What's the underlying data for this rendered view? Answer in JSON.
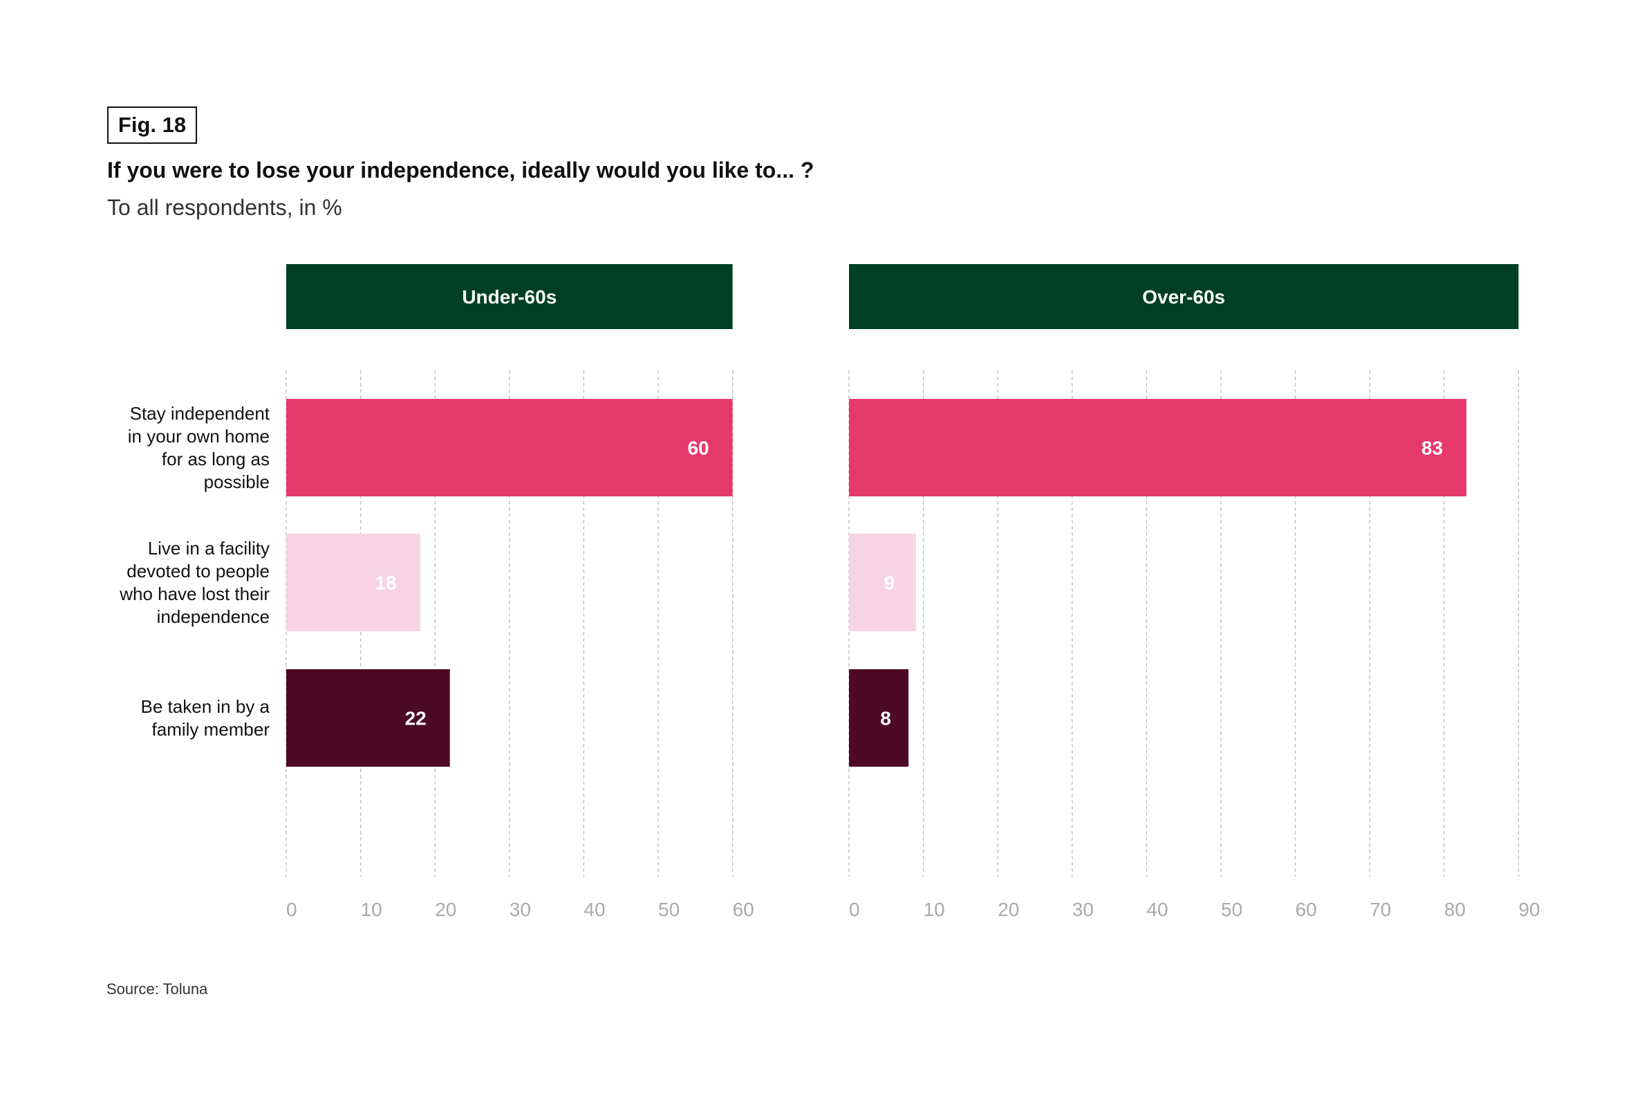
{
  "figure_label": "Fig. 18",
  "title": "If you were to lose your independence, ideally would you like to... ?",
  "subtitle": "To all respondents, in %",
  "source": "Source: Toluna",
  "colors": {
    "header_bg": "#003F25",
    "header_text": "#FFFFFF",
    "gridline": "#BBBBBB",
    "tick_text": "#AAAAAA",
    "value_text": "#FFFFFF",
    "category_colors": [
      "#E6396B",
      "#F7D3E4",
      "#4D0A24"
    ]
  },
  "chart_data": {
    "type": "bar",
    "orientation": "horizontal",
    "title": "If you were to lose your independence, ideally would you like to... ?",
    "subtitle": "To all respondents, in %",
    "categories": [
      "Stay independent in your own home for as long as possible",
      "Live in a facility devoted to people who have lost their independence",
      "Be taken in by a family member"
    ],
    "category_label_lines": [
      [
        "Stay independent",
        "in your own home",
        "for as long as",
        "possible"
      ],
      [
        "Live in a facility",
        "devoted to people",
        "who have lost their",
        "independence"
      ],
      [
        "Be taken in by a",
        "family member"
      ]
    ],
    "panels": [
      {
        "name": "Under-60s",
        "values": [
          60,
          18,
          22
        ],
        "xlim": [
          0,
          60
        ],
        "ticks": [
          0,
          10,
          20,
          30,
          40,
          50,
          60
        ]
      },
      {
        "name": "Over-60s",
        "values": [
          83,
          9,
          8
        ],
        "xlim": [
          0,
          90
        ],
        "ticks": [
          0,
          10,
          20,
          30,
          40,
          50,
          60,
          70,
          80,
          90
        ]
      }
    ],
    "xlabel": "",
    "ylabel": "",
    "grid": "vertical dashed",
    "legend": "none"
  }
}
